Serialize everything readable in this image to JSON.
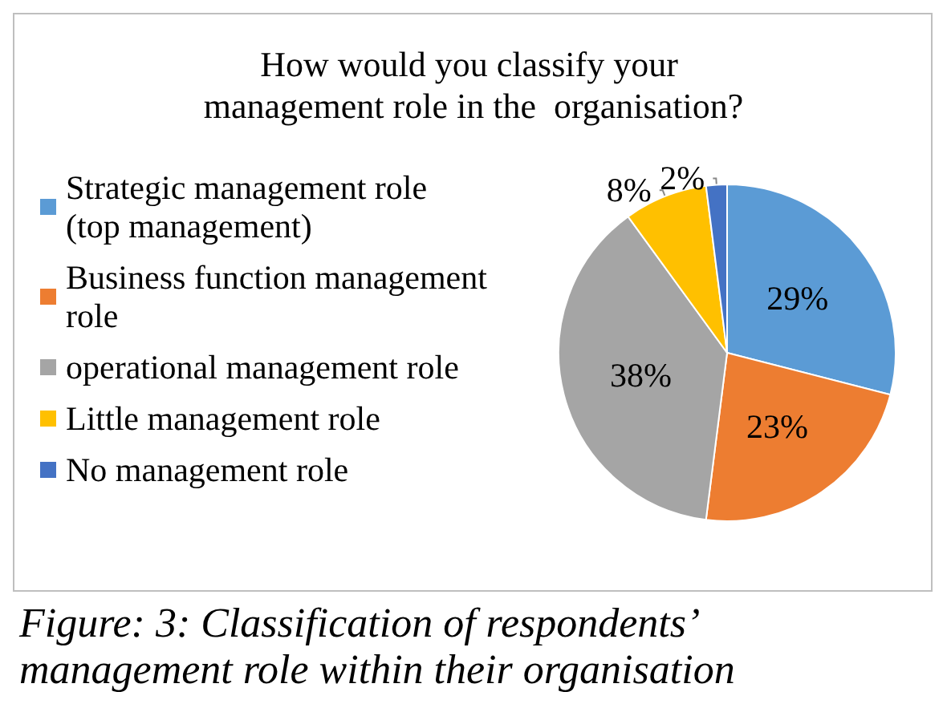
{
  "chart_data": {
    "type": "pie",
    "title": "How would you classify your management role in the  organisation?",
    "categories": [
      "Strategic management role (top management)",
      "Business function management role",
      "operational management role",
      "Little management role",
      "No management role"
    ],
    "values": [
      29,
      23,
      38,
      8,
      2
    ],
    "colors": [
      "#5b9bd5",
      "#ed7d31",
      "#a5a5a5",
      "#ffc000",
      "#4472c4"
    ],
    "value_labels": [
      "29%",
      "23%",
      "38%",
      "8%",
      "2%"
    ],
    "legend": "left",
    "annotations": [
      "Figure: 3: Classification of respondents’ management role within their organisation"
    ]
  }
}
